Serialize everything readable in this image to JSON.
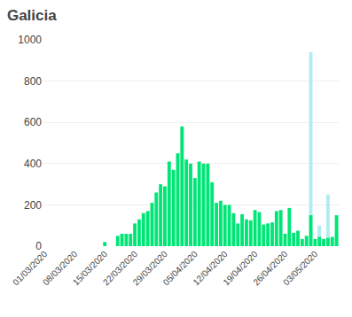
{
  "chart_data": {
    "type": "bar",
    "title": "Galicia",
    "categories": [
      "01/03/2020",
      null,
      null,
      null,
      null,
      null,
      null,
      "08/03/2020",
      null,
      null,
      null,
      null,
      null,
      null,
      "15/03/2020",
      null,
      null,
      null,
      null,
      null,
      null,
      "22/03/2020",
      null,
      null,
      null,
      null,
      null,
      null,
      "29/03/2020",
      null,
      null,
      null,
      null,
      null,
      null,
      "05/04/2020",
      null,
      null,
      null,
      null,
      null,
      null,
      "12/04/2020",
      null,
      null,
      null,
      null,
      null,
      null,
      "19/04/2020",
      null,
      null,
      null,
      null,
      null,
      null,
      "26/04/2020",
      null,
      null,
      null,
      null,
      null,
      null,
      "03/05/2020",
      null,
      null,
      null,
      null,
      null
    ],
    "series": [
      {
        "color": "#b2ebf2",
        "values": [
          0,
          0,
          0,
          0,
          0,
          0,
          0,
          0,
          0,
          0,
          0,
          0,
          0,
          0,
          0,
          0,
          0,
          0,
          0,
          0,
          0,
          0,
          0,
          0,
          0,
          0,
          0,
          0,
          0,
          0,
          0,
          0,
          0,
          0,
          0,
          0,
          0,
          0,
          0,
          0,
          0,
          0,
          0,
          0,
          0,
          0,
          0,
          0,
          0,
          0,
          0,
          0,
          0,
          0,
          0,
          0,
          0,
          0,
          0,
          0,
          0,
          0,
          940,
          0,
          100,
          0,
          250,
          0,
          80
        ]
      },
      {
        "color": "#00e676",
        "values": [
          0,
          0,
          0,
          0,
          0,
          0,
          0,
          0,
          0,
          0,
          0,
          0,
          0,
          0,
          20,
          0,
          0,
          50,
          60,
          60,
          60,
          110,
          130,
          160,
          170,
          210,
          260,
          300,
          290,
          410,
          370,
          450,
          580,
          420,
          400,
          330,
          410,
          400,
          400,
          310,
          210,
          220,
          200,
          200,
          160,
          110,
          155,
          130,
          125,
          175,
          165,
          105,
          110,
          115,
          170,
          175,
          60,
          185,
          65,
          75,
          35,
          50,
          150,
          35,
          45,
          35,
          40,
          45,
          150
        ]
      }
    ],
    "stacked": false,
    "ylim": [
      0,
      1000
    ],
    "yticks": [
      0,
      200,
      400,
      600,
      800,
      1000
    ],
    "grid": true
  }
}
